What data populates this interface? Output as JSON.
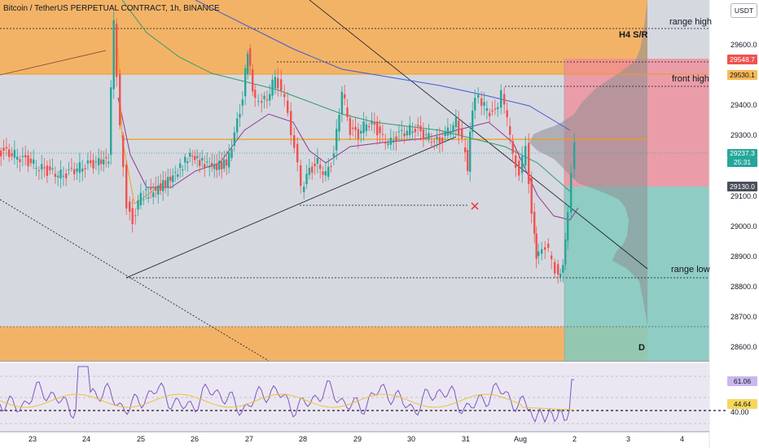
{
  "header": {
    "symbol_title": "Bitcoin / TetherUS PERPETUAL CONTRACT, 1h, BINANCE",
    "currency_button": "USDT"
  },
  "annotations": {
    "range_high": "range high",
    "h4_sr": "H4 S/R",
    "front_high": "front high",
    "range_low": "range low",
    "daily_marker": "D"
  },
  "price_axis": {
    "ticks": [
      "29600.0",
      "29400.0",
      "29300.0",
      "29100.0",
      "29000.0",
      "28900.0",
      "28800.0",
      "28700.0",
      "28600.0"
    ]
  },
  "price_tags": {
    "high_level": "29548.7",
    "level_2": "29530.1",
    "last_price": "29237.3",
    "countdown": "25:31",
    "low_level": "29130.0"
  },
  "rsi_axis": {
    "value": "61.06",
    "ma_value": "44.64",
    "level": "40.00"
  },
  "time_axis": {
    "labels": [
      "23",
      "24",
      "25",
      "26",
      "27",
      "28",
      "29",
      "30",
      "31",
      "Aug",
      "2",
      "3",
      "4"
    ]
  },
  "colors": {
    "zone_orange": "#f7b863",
    "bull_candle": "#26a69a",
    "bear_candle": "#ef5350",
    "short_zone": "#f28b95",
    "long_zone": "#8fd0c6",
    "rsi_line": "#7e57c2",
    "rsi_ma": "#f5d547"
  },
  "chart_data": {
    "type": "candlestick",
    "ylim": [
      28560,
      29800
    ],
    "x_range": [
      "23",
      "4"
    ]
  }
}
